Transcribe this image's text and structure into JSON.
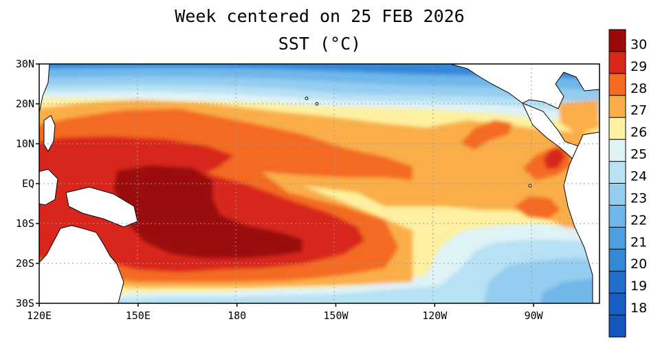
{
  "title_line1": "Week centered on 25 FEB 2026",
  "title_line2": "SST (°C)",
  "map": {
    "lat_ticks": [
      "30N",
      "20N",
      "10N",
      "EQ",
      "10S",
      "20S",
      "30S"
    ],
    "lon_ticks": [
      "120E",
      "150E",
      "180",
      "150W",
      "120W",
      "90W"
    ],
    "lat_range": [
      -30,
      30
    ],
    "lon_range": [
      120,
      290
    ],
    "grid": "dotted"
  },
  "colorbar": {
    "labels": [
      "30",
      "29",
      "28",
      "27",
      "26",
      "25",
      "24",
      "23",
      "22",
      "21",
      "20",
      "19",
      "18"
    ],
    "colors": [
      "#9b0a08",
      "#d8261a",
      "#f46a20",
      "#faae48",
      "#fdf0a0",
      "#dff3f7",
      "#b7e1f4",
      "#94cdf0",
      "#6fb7ea",
      "#4e9fe2",
      "#3488d8",
      "#216fcd",
      "#165ec4"
    ]
  },
  "colors": {
    "land": "#ffffff",
    "coast": "#000000"
  }
}
